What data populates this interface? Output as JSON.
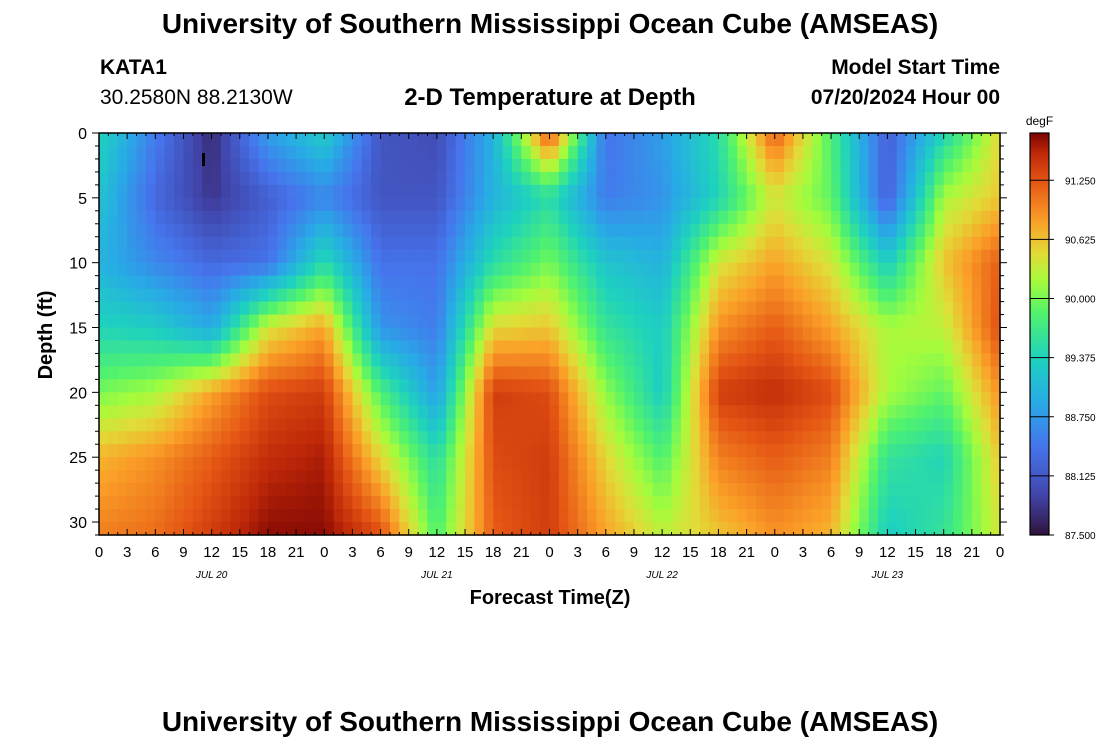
{
  "header": {
    "title": "University of Southern Mississippi Ocean Cube (AMSEAS)",
    "station": "KATA1",
    "coords": "30.2580N  88.2130W",
    "subtitle": "2-D Temperature at Depth",
    "model_start_label": "Model Start Time",
    "model_start_value": "07/20/2024 Hour 00"
  },
  "footer": {
    "title": "University of Southern Mississippi Ocean Cube (AMSEAS)"
  },
  "chart_data": {
    "type": "heatmap",
    "title": "2-D Temperature at Depth",
    "xlabel": "Forecast Time(Z)",
    "ylabel": "Depth (ft)",
    "xlim": [
      0,
      96
    ],
    "ylim": [
      0,
      31
    ],
    "x_tick_values": [
      0,
      3,
      6,
      9,
      12,
      15,
      18,
      21,
      24,
      27,
      30,
      33,
      36,
      39,
      42,
      45,
      48,
      51,
      54,
      57,
      60,
      63,
      66,
      69,
      72,
      75,
      78,
      81,
      84,
      87,
      90,
      93,
      96
    ],
    "x_tick_labels": [
      "0",
      "3",
      "6",
      "9",
      "12",
      "15",
      "18",
      "21",
      "0",
      "3",
      "6",
      "9",
      "12",
      "15",
      "18",
      "21",
      "0",
      "3",
      "6",
      "9",
      "12",
      "15",
      "18",
      "21",
      "0",
      "3",
      "6",
      "9",
      "12",
      "15",
      "18",
      "21",
      "0"
    ],
    "date_labels": [
      {
        "label": "JUL 20",
        "x": 12
      },
      {
        "label": "JUL 21",
        "x": 36
      },
      {
        "label": "JUL 22",
        "x": 60
      },
      {
        "label": "JUL 23",
        "x": 84
      }
    ],
    "y_tick_values": [
      0,
      5,
      10,
      15,
      20,
      25,
      30
    ],
    "y_tick_labels": [
      "0",
      "5",
      "10",
      "15",
      "20",
      "25",
      "30"
    ],
    "colorbar": {
      "unit": "degF",
      "min": 87.5,
      "max": 91.75,
      "ticks": [
        87.5,
        88.125,
        88.75,
        89.375,
        90.0,
        90.625,
        91.25
      ],
      "tick_labels": [
        "87.500",
        "88.125",
        "88.750",
        "89.375",
        "90.000",
        "90.625",
        "91.250"
      ]
    },
    "grid_times": [
      0,
      6,
      12,
      18,
      24,
      30,
      36,
      42,
      48,
      54,
      60,
      66,
      72,
      78,
      84,
      90,
      96
    ],
    "grid_depths": [
      0,
      5,
      10,
      15,
      20,
      25,
      31
    ],
    "grid_values": [
      [
        89.4,
        88.5,
        87.7,
        88.8,
        89.3,
        88.1,
        88.0,
        89.0,
        91.3,
        88.4,
        88.8,
        89.5,
        91.2,
        89.8,
        88.2,
        89.4,
        90.5
      ],
      [
        89.2,
        88.3,
        87.8,
        88.2,
        88.6,
        88.1,
        88.1,
        89.0,
        89.5,
        88.5,
        88.7,
        89.4,
        90.4,
        89.9,
        88.2,
        90.2,
        90.6
      ],
      [
        89.0,
        88.6,
        88.3,
        88.4,
        89.5,
        88.4,
        88.4,
        89.5,
        90.0,
        89.2,
        89.0,
        90.4,
        90.8,
        90.4,
        89.3,
        90.6,
        91.2
      ],
      [
        89.4,
        89.3,
        88.9,
        90.4,
        90.8,
        88.7,
        88.5,
        90.5,
        90.6,
        89.6,
        89.3,
        90.9,
        91.2,
        90.8,
        90.2,
        90.3,
        91.3
      ],
      [
        90.0,
        90.2,
        90.8,
        91.3,
        91.4,
        89.8,
        88.8,
        91.4,
        91.3,
        90.1,
        89.3,
        91.4,
        91.5,
        91.3,
        90.2,
        89.9,
        90.9
      ],
      [
        90.7,
        90.9,
        91.2,
        91.5,
        91.6,
        90.5,
        89.5,
        91.3,
        91.4,
        90.5,
        89.8,
        91.0,
        91.2,
        91.0,
        89.6,
        89.4,
        90.6
      ],
      [
        91.0,
        91.1,
        91.4,
        91.7,
        91.7,
        91.3,
        89.8,
        91.2,
        91.4,
        90.8,
        90.3,
        90.6,
        90.9,
        90.7,
        89.3,
        89.6,
        90.4
      ]
    ]
  }
}
